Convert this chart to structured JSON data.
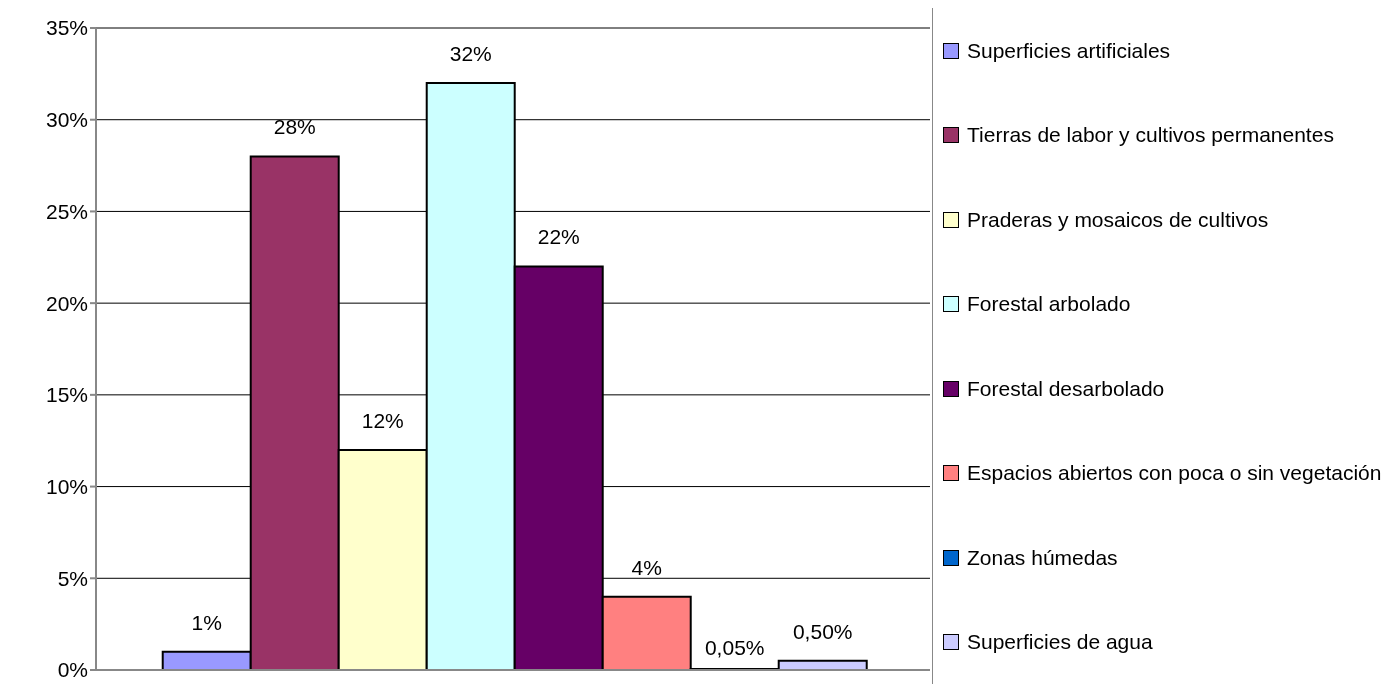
{
  "chart_data": {
    "type": "bar",
    "categories": [
      null
    ],
    "series": [
      {
        "name": "Superficies artificiales",
        "color": "#9999ff",
        "values": [
          1
        ],
        "value_labels": [
          "1%"
        ]
      },
      {
        "name": "Tierras de labor y cultivos permanentes",
        "color": "#993366",
        "values": [
          28
        ],
        "value_labels": [
          "28%"
        ]
      },
      {
        "name": "Praderas y mosaicos de cultivos",
        "color": "#ffffcc",
        "values": [
          12
        ],
        "value_labels": [
          "12%"
        ]
      },
      {
        "name": "Forestal arbolado",
        "color": "#ccffff",
        "values": [
          32
        ],
        "value_labels": [
          "32%"
        ]
      },
      {
        "name": "Forestal desarbolado",
        "color": "#660066",
        "values": [
          22
        ],
        "value_labels": [
          "22%"
        ]
      },
      {
        "name": "Espacios abiertos con poca o sin vegetación",
        "color": "#ff8080",
        "values": [
          4
        ],
        "value_labels": [
          "4%"
        ]
      },
      {
        "name": "Zonas húmedas",
        "color": "#0066cc",
        "values": [
          0.05
        ],
        "value_labels": [
          "0,05%"
        ]
      },
      {
        "name": "Superficies de agua",
        "color": "#ccccff",
        "values": [
          0.5
        ],
        "value_labels": [
          "0,50%"
        ]
      }
    ],
    "ylim": [
      0,
      35
    ],
    "yticks": [
      {
        "value": 0,
        "label": "0%"
      },
      {
        "value": 5,
        "label": "5%"
      },
      {
        "value": 10,
        "label": "10%"
      },
      {
        "value": 15,
        "label": "15%"
      },
      {
        "value": 20,
        "label": "20%"
      },
      {
        "value": 25,
        "label": "25%"
      },
      {
        "value": 30,
        "label": "30%"
      },
      {
        "value": 35,
        "label": "35%"
      }
    ],
    "grid": "y",
    "legend": "right"
  }
}
